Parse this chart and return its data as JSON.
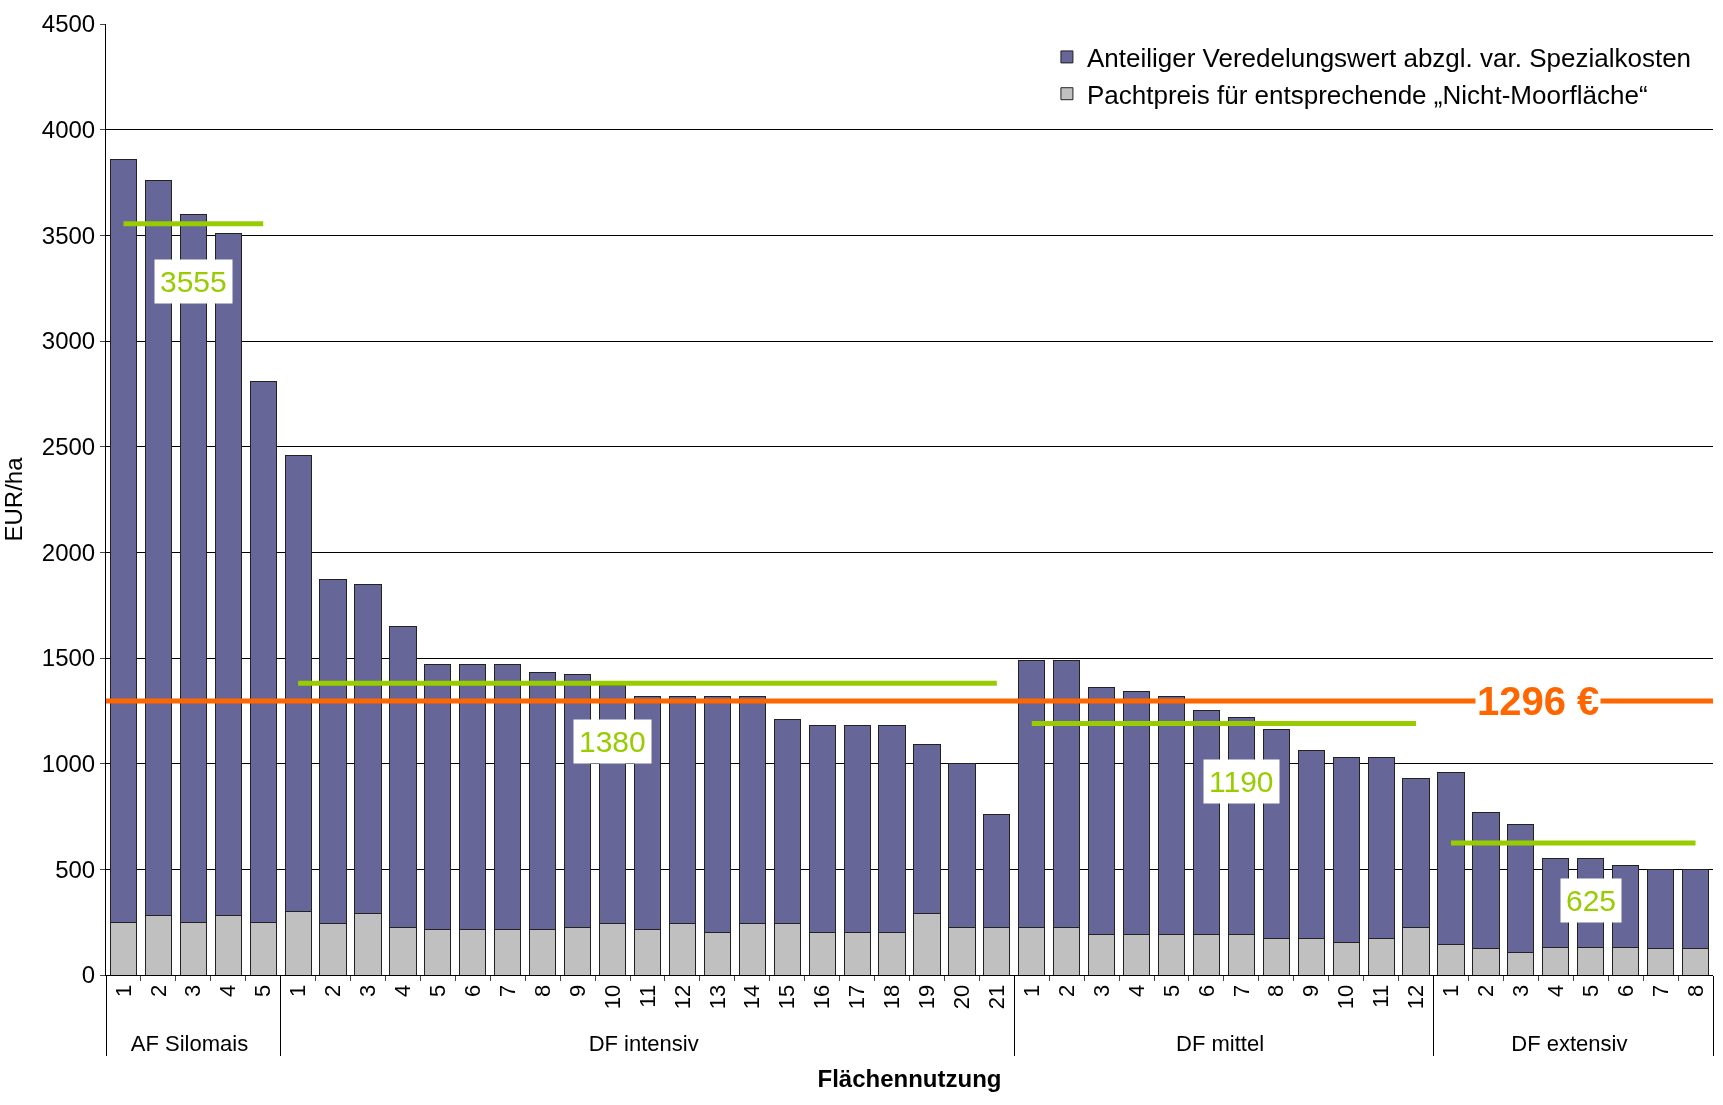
{
  "chart_data": {
    "type": "bar",
    "stacked": true,
    "xlabel": "Flächennutzung",
    "ylabel": "EUR/ha",
    "categories": [
      "1",
      "2",
      "3",
      "4",
      "5",
      "1",
      "2",
      "3",
      "4",
      "5",
      "6",
      "7",
      "8",
      "9",
      "10",
      "11",
      "12",
      "13",
      "14",
      "15",
      "16",
      "17",
      "18",
      "19",
      "20",
      "21",
      "1",
      "2",
      "3",
      "4",
      "5",
      "6",
      "7",
      "8",
      "9",
      "10",
      "11",
      "12",
      "1",
      "2",
      "3",
      "4",
      "5",
      "6",
      "7",
      "8"
    ],
    "annotations": [
      "AF Silomais",
      "DF intensiv",
      "DF mittel",
      "DF extensiv"
    ],
    "series": [
      {
        "name": "Pachtpreis für entsprechende „Nicht-Moorfläche“",
        "color": "#c0c0c0",
        "values": [
          250,
          280,
          250,
          280,
          250,
          300,
          245,
          290,
          225,
          215,
          215,
          215,
          215,
          225,
          245,
          215,
          245,
          200,
          245,
          245,
          200,
          200,
          200,
          290,
          225,
          225,
          225,
          225,
          190,
          190,
          190,
          190,
          190,
          175,
          175,
          155,
          175,
          225,
          145,
          125,
          105,
          130,
          130,
          130,
          125,
          125
        ]
      },
      {
        "name": "Anteiliger Veredelungswert abzgl. var. Spezialkosten",
        "color": "#666699",
        "values": [
          3610,
          3480,
          3350,
          3230,
          2560,
          2160,
          1625,
          1560,
          1425,
          1255,
          1255,
          1255,
          1215,
          1195,
          1125,
          1105,
          1075,
          1120,
          1075,
          965,
          980,
          980,
          980,
          800,
          775,
          535,
          1265,
          1265,
          1170,
          1150,
          1130,
          1060,
          1030,
          985,
          885,
          875,
          855,
          705,
          815,
          645,
          605,
          420,
          420,
          390,
          375,
          375
        ]
      },
      {
        "type": "line",
        "color": "#99cc00",
        "value_labels": [
          null,
          null,
          "3555",
          null,
          null,
          null,
          null,
          null,
          null,
          null,
          null,
          null,
          null,
          null,
          null,
          null,
          null,
          null,
          null,
          null,
          null,
          null,
          null,
          null,
          null,
          null,
          null,
          null,
          null,
          null,
          null,
          null,
          null,
          null,
          null,
          null,
          null,
          null,
          null,
          null,
          null,
          null,
          null,
          null,
          null,
          null
        ],
        "values": [
          3555,
          3555,
          3555,
          3555,
          3555,
          null,
          null,
          null,
          null,
          null,
          null,
          null,
          null,
          null,
          null,
          null,
          null,
          null,
          null,
          null,
          null,
          null,
          null,
          null,
          null,
          null,
          null,
          null,
          null,
          null,
          null,
          null,
          null,
          null,
          null,
          null,
          null,
          null,
          null,
          null,
          null,
          null,
          null,
          null,
          null,
          null
        ]
      },
      {
        "type": "line",
        "color": "#99cc00",
        "value_labels": [
          null,
          null,
          null,
          null,
          null,
          null,
          null,
          null,
          null,
          null,
          null,
          null,
          null,
          null,
          "1380",
          null,
          null,
          null,
          null,
          null,
          null,
          null,
          null,
          null,
          null,
          null,
          null,
          null,
          null,
          null,
          null,
          null,
          null,
          null,
          null,
          null,
          null,
          null,
          null,
          null,
          null,
          null,
          null,
          null,
          null,
          null
        ],
        "values": [
          null,
          null,
          null,
          null,
          null,
          1380,
          1380,
          1380,
          1380,
          1380,
          1380,
          1380,
          1380,
          1380,
          1380,
          1380,
          1380,
          1380,
          1380,
          1380,
          1380,
          1380,
          1380,
          1380,
          1380,
          1380,
          null,
          null,
          null,
          null,
          null,
          null,
          null,
          null,
          null,
          null,
          null,
          null,
          null,
          null,
          null,
          null,
          null,
          null,
          null,
          null
        ]
      },
      {
        "type": "line",
        "color": "#99cc00",
        "value_labels": [
          null,
          null,
          null,
          null,
          null,
          null,
          null,
          null,
          null,
          null,
          null,
          null,
          null,
          null,
          null,
          null,
          null,
          null,
          null,
          null,
          null,
          null,
          null,
          null,
          null,
          null,
          null,
          null,
          null,
          null,
          null,
          null,
          "1190",
          null,
          null,
          null,
          null,
          null,
          null,
          null,
          null,
          null,
          null,
          null,
          null,
          null
        ],
        "values": [
          null,
          null,
          null,
          null,
          null,
          null,
          null,
          null,
          null,
          null,
          null,
          null,
          null,
          null,
          null,
          null,
          null,
          null,
          null,
          null,
          null,
          null,
          null,
          null,
          null,
          null,
          1190,
          1190,
          1190,
          1190,
          1190,
          1190,
          1190,
          1190,
          1190,
          1190,
          1190,
          1190,
          null,
          null,
          null,
          null,
          null,
          null,
          null,
          null
        ]
      },
      {
        "type": "line",
        "color": "#99cc00",
        "value_labels": [
          null,
          null,
          null,
          null,
          null,
          null,
          null,
          null,
          null,
          null,
          null,
          null,
          null,
          null,
          null,
          null,
          null,
          null,
          null,
          null,
          null,
          null,
          null,
          null,
          null,
          null,
          null,
          null,
          null,
          null,
          null,
          null,
          null,
          null,
          null,
          null,
          null,
          null,
          null,
          null,
          null,
          null,
          "625",
          null,
          null,
          null
        ],
        "values": [
          null,
          null,
          null,
          null,
          null,
          null,
          null,
          null,
          null,
          null,
          null,
          null,
          null,
          null,
          null,
          null,
          null,
          null,
          null,
          null,
          null,
          null,
          null,
          null,
          null,
          null,
          null,
          null,
          null,
          null,
          null,
          null,
          null,
          null,
          null,
          null,
          null,
          null,
          625,
          625,
          625,
          625,
          625,
          625,
          625,
          625
        ]
      }
    ],
    "ref_lines": [
      {
        "axis": "y",
        "value": 1296,
        "label": "1296 €",
        "color": "#ff6600"
      }
    ],
    "ylim": [
      0,
      4500
    ],
    "yticks": [
      0,
      500,
      1000,
      1500,
      2000,
      2500,
      3000,
      3500,
      4000,
      4500
    ],
    "grid": "y",
    "legend": "top right"
  }
}
